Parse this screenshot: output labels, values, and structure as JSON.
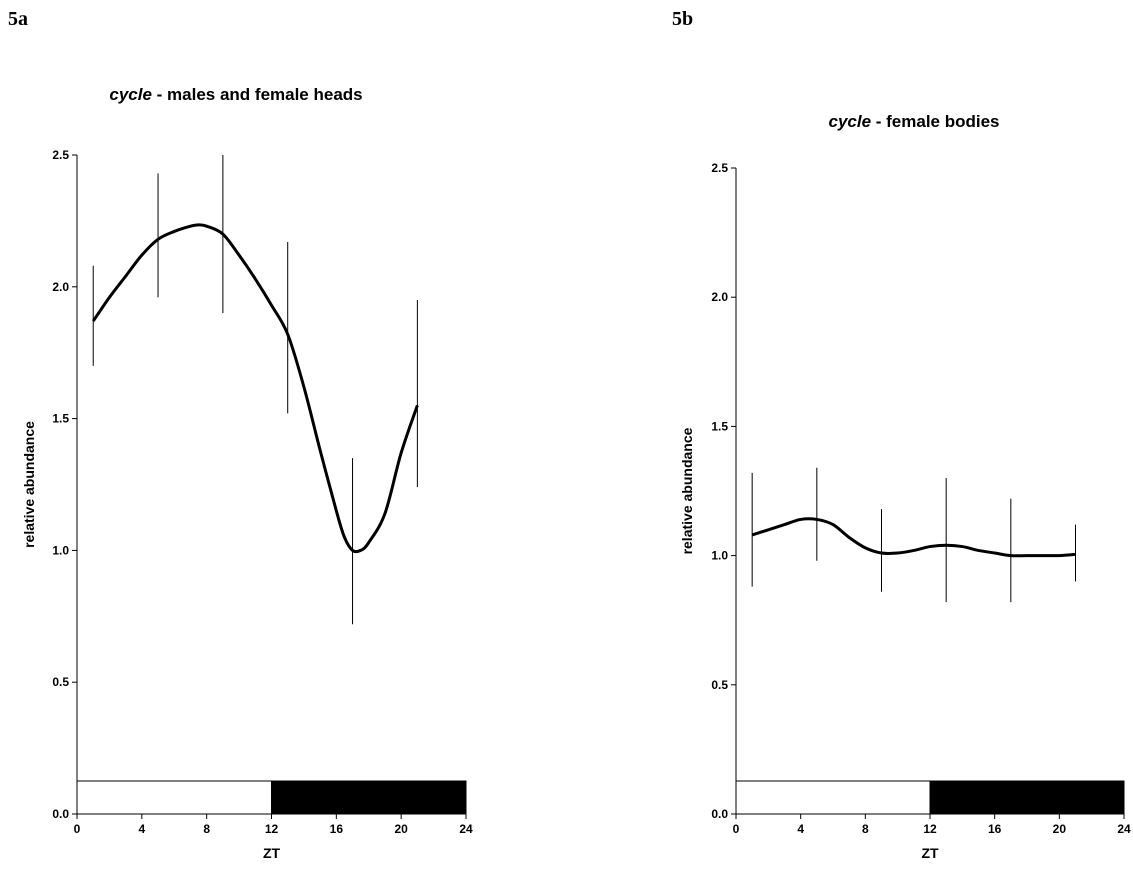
{
  "figure": {
    "panel_labels": [
      "5a",
      "5b"
    ]
  },
  "chart_data": [
    {
      "type": "line",
      "title_gene": "cycle",
      "title_rest": " -  males and female heads",
      "xlabel": "ZT",
      "ylabel": "relative abundance",
      "xlim": [
        0,
        24
      ],
      "ylim": [
        0,
        2.5
      ],
      "xticks": [
        "0",
        "4",
        "8",
        "12",
        "16",
        "20",
        "24"
      ],
      "yticks": [
        "0.0",
        "0.5",
        "1.0",
        "1.5",
        "2.0",
        "2.5"
      ],
      "grid": false,
      "legend": "none",
      "x": [
        1,
        5,
        9,
        13,
        17,
        21
      ],
      "y": [
        1.87,
        2.18,
        2.2,
        1.82,
        1.0,
        1.55
      ],
      "error_low": [
        1.7,
        1.96,
        1.9,
        1.52,
        0.72,
        1.24
      ],
      "error_high": [
        2.08,
        2.43,
        2.5,
        2.17,
        1.35,
        1.95
      ],
      "curve_x": [
        1,
        2,
        3,
        4,
        5,
        6,
        7,
        7.5,
        8,
        9,
        10,
        11,
        12,
        13,
        14,
        15,
        16,
        16.5,
        17,
        17.5,
        18,
        19,
        20,
        21
      ],
      "curve_y": [
        1.87,
        1.96,
        2.04,
        2.12,
        2.18,
        2.21,
        2.23,
        2.235,
        2.23,
        2.2,
        2.12,
        2.03,
        1.93,
        1.82,
        1.62,
        1.38,
        1.15,
        1.05,
        1.0,
        1.0,
        1.03,
        1.14,
        1.37,
        1.55
      ],
      "light_dark_bar": {
        "light": [
          0,
          12
        ],
        "dark": [
          12,
          24
        ]
      }
    },
    {
      "type": "line",
      "title_gene": "cycle",
      "title_rest": " - female bodies",
      "xlabel": "ZT",
      "ylabel": "relative abundance",
      "xlim": [
        0,
        24
      ],
      "ylim": [
        0,
        2.5
      ],
      "xticks": [
        "0",
        "4",
        "8",
        "12",
        "16",
        "20",
        "24"
      ],
      "yticks": [
        "0.0",
        "0.5",
        "1.0",
        "1.5",
        "2.0",
        "2.5"
      ],
      "grid": false,
      "legend": "none",
      "x": [
        1,
        5,
        9,
        13,
        17,
        21
      ],
      "y": [
        1.08,
        1.14,
        1.01,
        1.04,
        1.0,
        1.0
      ],
      "error_low": [
        0.88,
        0.98,
        0.86,
        0.82,
        0.82,
        0.9
      ],
      "error_high": [
        1.32,
        1.34,
        1.18,
        1.3,
        1.22,
        1.12
      ],
      "curve_x": [
        1,
        2,
        3,
        4,
        5,
        6,
        7,
        8,
        9,
        10,
        11,
        12,
        13,
        14,
        15,
        16,
        17,
        18,
        19,
        20,
        21
      ],
      "curve_y": [
        1.08,
        1.1,
        1.12,
        1.14,
        1.14,
        1.12,
        1.07,
        1.03,
        1.01,
        1.01,
        1.02,
        1.035,
        1.04,
        1.035,
        1.02,
        1.01,
        1.0,
        1.0,
        1.0,
        1.0,
        1.005
      ],
      "light_dark_bar": {
        "light": [
          0,
          12
        ],
        "dark": [
          12,
          24
        ]
      }
    }
  ]
}
